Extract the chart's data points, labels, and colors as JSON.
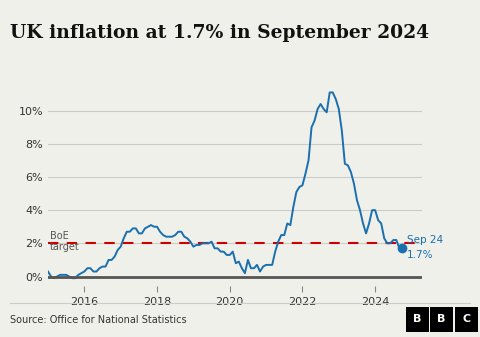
{
  "title": "UK inflation at 1.7% in September 2024",
  "title_fontsize": 13.5,
  "source_text": "Source: Office for National Statistics",
  "boe_label_line1": "BoE",
  "boe_label_line2": "target",
  "boe_target": 2.0,
  "annotation_line1": "Sep 24",
  "annotation_line2": "1.7%",
  "annotation_value": 1.7,
  "line_color": "#1a6faf",
  "dashed_color": "#cc0000",
  "bg_color": "#f0f0eb",
  "grid_color": "#cccccc",
  "zero_line_color": "#555555",
  "yticks": [
    0,
    2,
    4,
    6,
    8,
    10
  ],
  "xlim_start": 2015.0,
  "xlim_end": 2025.3,
  "ylim_min": -0.6,
  "ylim_max": 12.0,
  "xtick_years": [
    2016,
    2018,
    2020,
    2022,
    2024
  ],
  "data": {
    "dates": [
      2015.0,
      2015.083,
      2015.167,
      2015.25,
      2015.333,
      2015.417,
      2015.5,
      2015.583,
      2015.667,
      2015.75,
      2015.833,
      2015.917,
      2016.0,
      2016.083,
      2016.167,
      2016.25,
      2016.333,
      2016.417,
      2016.5,
      2016.583,
      2016.667,
      2016.75,
      2016.833,
      2016.917,
      2017.0,
      2017.083,
      2017.167,
      2017.25,
      2017.333,
      2017.417,
      2017.5,
      2017.583,
      2017.667,
      2017.75,
      2017.833,
      2017.917,
      2018.0,
      2018.083,
      2018.167,
      2018.25,
      2018.333,
      2018.417,
      2018.5,
      2018.583,
      2018.667,
      2018.75,
      2018.833,
      2018.917,
      2019.0,
      2019.083,
      2019.167,
      2019.25,
      2019.333,
      2019.417,
      2019.5,
      2019.583,
      2019.667,
      2019.75,
      2019.833,
      2019.917,
      2020.0,
      2020.083,
      2020.167,
      2020.25,
      2020.333,
      2020.417,
      2020.5,
      2020.583,
      2020.667,
      2020.75,
      2020.833,
      2020.917,
      2021.0,
      2021.083,
      2021.167,
      2021.25,
      2021.333,
      2021.417,
      2021.5,
      2021.583,
      2021.667,
      2021.75,
      2021.833,
      2021.917,
      2022.0,
      2022.083,
      2022.167,
      2022.25,
      2022.333,
      2022.417,
      2022.5,
      2022.583,
      2022.667,
      2022.75,
      2022.833,
      2022.917,
      2023.0,
      2023.083,
      2023.167,
      2023.25,
      2023.333,
      2023.417,
      2023.5,
      2023.583,
      2023.667,
      2023.75,
      2023.833,
      2023.917,
      2024.0,
      2024.083,
      2024.167,
      2024.25,
      2024.333,
      2024.417,
      2024.5,
      2024.583,
      2024.667,
      2024.75
    ],
    "values": [
      0.3,
      0.0,
      -0.1,
      0.0,
      0.1,
      0.1,
      0.1,
      0.0,
      -0.1,
      -0.1,
      0.1,
      0.2,
      0.3,
      0.5,
      0.5,
      0.3,
      0.3,
      0.5,
      0.6,
      0.6,
      1.0,
      1.0,
      1.2,
      1.6,
      1.8,
      2.3,
      2.7,
      2.7,
      2.9,
      2.9,
      2.6,
      2.6,
      2.9,
      3.0,
      3.1,
      3.0,
      3.0,
      2.7,
      2.5,
      2.4,
      2.4,
      2.4,
      2.5,
      2.7,
      2.7,
      2.4,
      2.3,
      2.1,
      1.8,
      1.9,
      1.9,
      2.0,
      2.0,
      2.0,
      2.1,
      1.7,
      1.7,
      1.5,
      1.5,
      1.3,
      1.3,
      1.5,
      0.8,
      0.9,
      0.5,
      0.2,
      1.0,
      0.5,
      0.5,
      0.7,
      0.3,
      0.6,
      0.7,
      0.7,
      0.7,
      1.5,
      2.1,
      2.5,
      2.5,
      3.2,
      3.1,
      4.2,
      5.1,
      5.4,
      5.5,
      6.2,
      7.0,
      9.0,
      9.4,
      10.1,
      10.4,
      10.1,
      9.9,
      11.1,
      11.1,
      10.7,
      10.1,
      8.8,
      6.8,
      6.7,
      6.3,
      5.6,
      4.6,
      4.0,
      3.2,
      2.6,
      3.2,
      4.0,
      4.0,
      3.4,
      3.2,
      2.3,
      2.0,
      2.0,
      2.2,
      2.2,
      1.7,
      1.7
    ]
  }
}
